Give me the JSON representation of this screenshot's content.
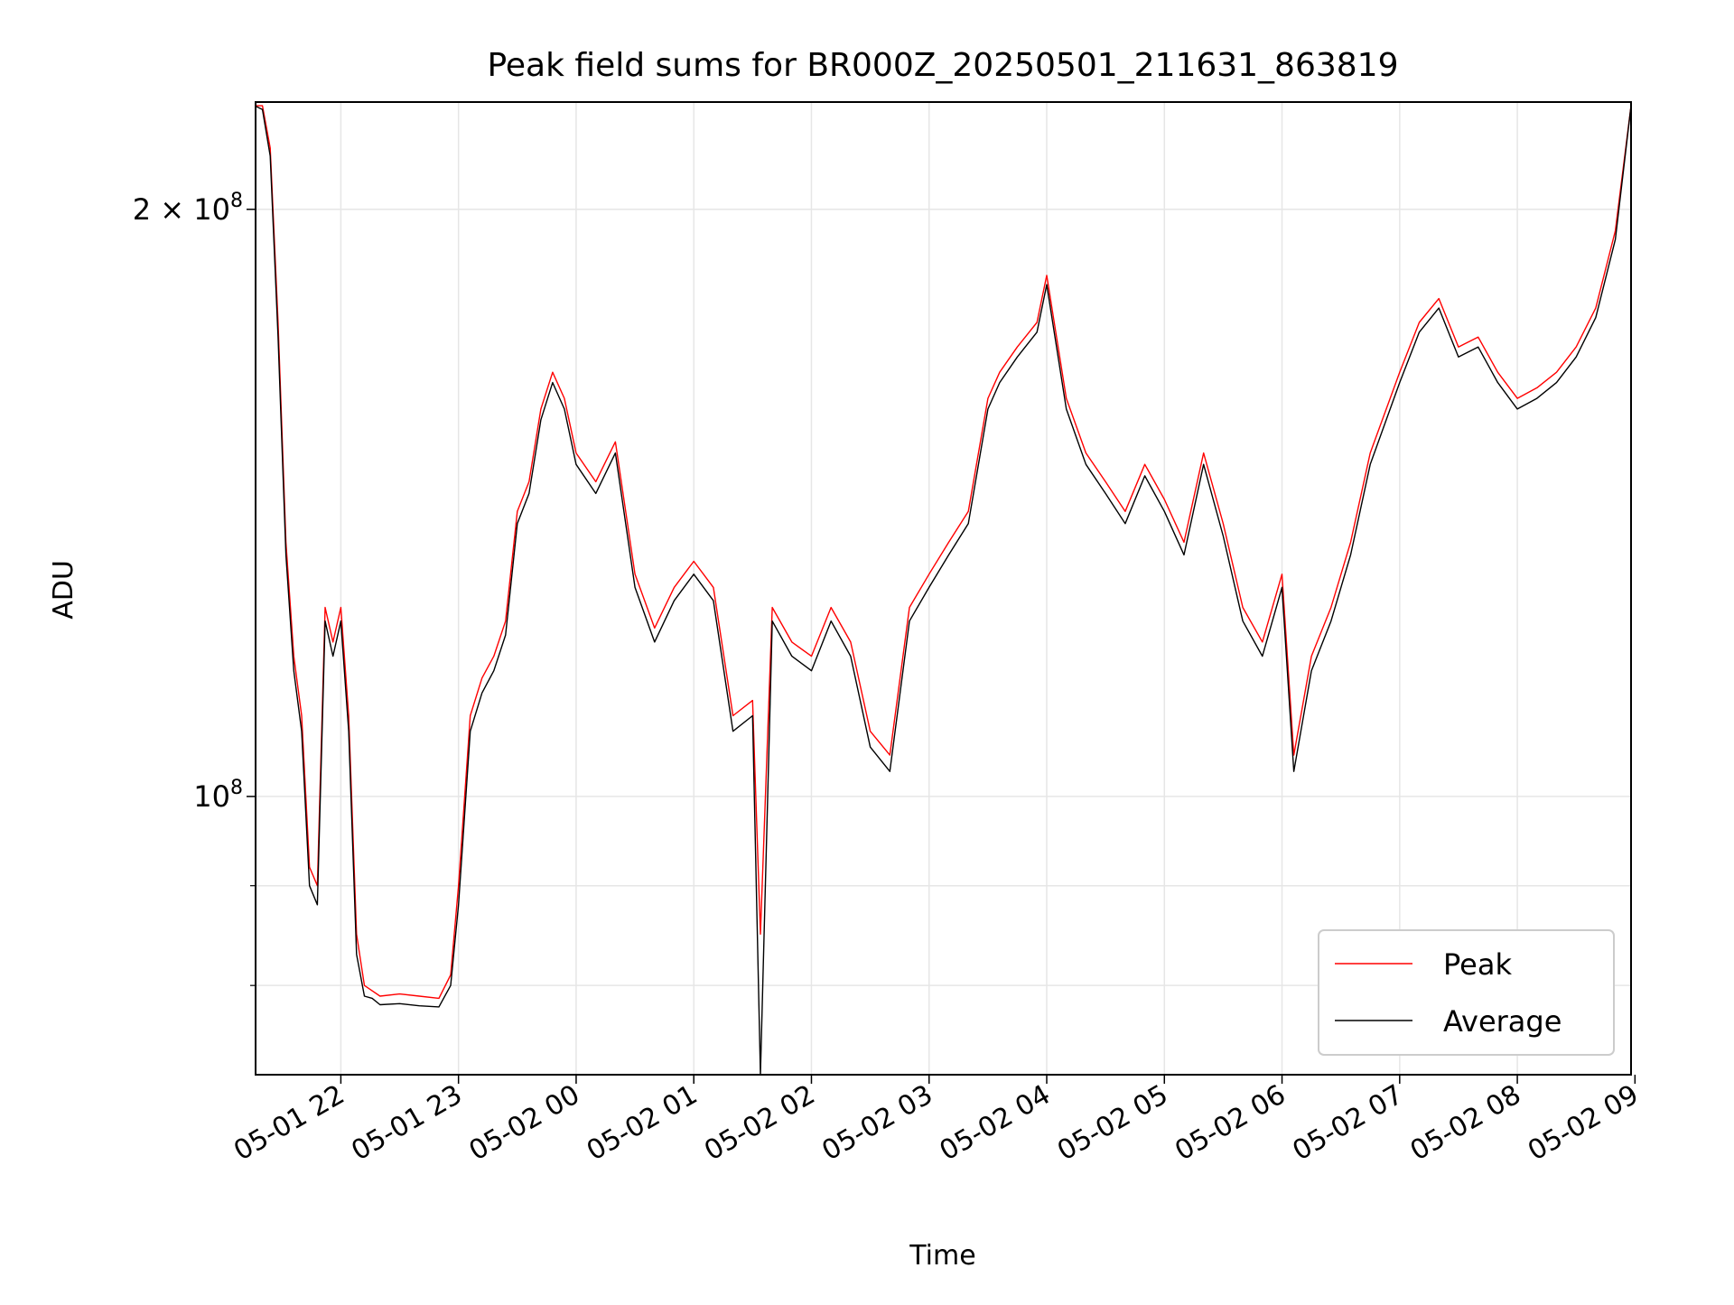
{
  "chart_data": {
    "type": "line",
    "title": "Peak field sums for BR000Z_20250501_211631_863819",
    "xlabel": "Time",
    "ylabel": "ADU",
    "yscale": "log",
    "xlim": [
      "2025-05-01 21:16:31",
      "2025-05-02 08:58:00"
    ],
    "ylim": [
      72000000,
      227000000
    ],
    "grid": true,
    "legend_position": "lower right",
    "x_ticks": [
      {
        "time": "2025-05-01 22:00",
        "label": "05-01 22"
      },
      {
        "time": "2025-05-01 23:00",
        "label": "05-01 23"
      },
      {
        "time": "2025-05-02 00:00",
        "label": "05-02 00"
      },
      {
        "time": "2025-05-02 01:00",
        "label": "05-02 01"
      },
      {
        "time": "2025-05-02 02:00",
        "label": "05-02 02"
      },
      {
        "time": "2025-05-02 03:00",
        "label": "05-02 03"
      },
      {
        "time": "2025-05-02 04:00",
        "label": "05-02 04"
      },
      {
        "time": "2025-05-02 05:00",
        "label": "05-02 05"
      },
      {
        "time": "2025-05-02 06:00",
        "label": "05-02 06"
      },
      {
        "time": "2025-05-02 07:00",
        "label": "05-02 07"
      },
      {
        "time": "2025-05-02 08:00",
        "label": "05-02 08"
      },
      {
        "time": "2025-05-02 09:00",
        "label": "05-02 09"
      }
    ],
    "y_ticks_major": [
      {
        "value": 100000000,
        "label_base": "10",
        "label_exp": "8",
        "label_prefix": ""
      },
      {
        "value": 200000000,
        "label_base": "10",
        "label_exp": "8",
        "label_prefix": "2 × "
      }
    ],
    "y_ticks_minor": [
      80000000,
      90000000
    ],
    "series": [
      {
        "name": "Peak",
        "color": "#ff0000",
        "x": [
          "2025-05-01 21:16",
          "2025-05-01 21:20",
          "2025-05-01 21:24",
          "2025-05-01 21:28",
          "2025-05-01 21:32",
          "2025-05-01 21:36",
          "2025-05-01 21:40",
          "2025-05-01 21:44",
          "2025-05-01 21:48",
          "2025-05-01 21:52",
          "2025-05-01 21:56",
          "2025-05-01 22:00",
          "2025-05-01 22:04",
          "2025-05-01 22:08",
          "2025-05-01 22:12",
          "2025-05-01 22:16",
          "2025-05-01 22:20",
          "2025-05-01 22:30",
          "2025-05-01 22:40",
          "2025-05-01 22:50",
          "2025-05-01 22:56",
          "2025-05-01 23:00",
          "2025-05-01 23:06",
          "2025-05-01 23:12",
          "2025-05-01 23:18",
          "2025-05-01 23:24",
          "2025-05-01 23:30",
          "2025-05-01 23:36",
          "2025-05-01 23:42",
          "2025-05-01 23:48",
          "2025-05-01 23:54",
          "2025-05-02 00:00",
          "2025-05-02 00:10",
          "2025-05-02 00:20",
          "2025-05-02 00:30",
          "2025-05-02 00:40",
          "2025-05-02 00:50",
          "2025-05-02 01:00",
          "2025-05-02 01:10",
          "2025-05-02 01:20",
          "2025-05-02 01:30",
          "2025-05-02 01:34",
          "2025-05-02 01:40",
          "2025-05-02 01:50",
          "2025-05-02 02:00",
          "2025-05-02 02:10",
          "2025-05-02 02:20",
          "2025-05-02 02:30",
          "2025-05-02 02:40",
          "2025-05-02 02:50",
          "2025-05-02 03:00",
          "2025-05-02 03:10",
          "2025-05-02 03:20",
          "2025-05-02 03:30",
          "2025-05-02 03:36",
          "2025-05-02 03:45",
          "2025-05-02 03:55",
          "2025-05-02 04:00",
          "2025-05-02 04:10",
          "2025-05-02 04:20",
          "2025-05-02 04:30",
          "2025-05-02 04:40",
          "2025-05-02 04:50",
          "2025-05-02 05:00",
          "2025-05-02 05:10",
          "2025-05-02 05:20",
          "2025-05-02 05:30",
          "2025-05-02 05:40",
          "2025-05-02 05:50",
          "2025-05-02 06:00",
          "2025-05-02 06:06",
          "2025-05-02 06:15",
          "2025-05-02 06:25",
          "2025-05-02 06:35",
          "2025-05-02 06:45",
          "2025-05-02 07:00",
          "2025-05-02 07:10",
          "2025-05-02 07:20",
          "2025-05-02 07:30",
          "2025-05-02 07:40",
          "2025-05-02 07:50",
          "2025-05-02 08:00",
          "2025-05-02 08:10",
          "2025-05-02 08:20",
          "2025-05-02 08:30",
          "2025-05-02 08:40",
          "2025-05-02 08:50",
          "2025-05-02 08:58"
        ],
        "values": [
          226000000,
          226000000,
          215000000,
          175000000,
          135000000,
          118000000,
          110000000,
          92000000,
          90000000,
          125000000,
          120000000,
          125000000,
          110000000,
          85000000,
          80000000,
          79500000,
          79000000,
          79200000,
          79000000,
          78800000,
          81000000,
          90000000,
          110000000,
          115000000,
          118000000,
          123000000,
          140000000,
          145000000,
          158000000,
          165000000,
          160000000,
          150000000,
          145000000,
          152000000,
          130000000,
          122000000,
          128000000,
          132000000,
          128000000,
          110000000,
          112000000,
          85000000,
          125000000,
          120000000,
          118000000,
          125000000,
          120000000,
          108000000,
          105000000,
          125000000,
          130000000,
          135000000,
          140000000,
          160000000,
          165000000,
          170000000,
          175000000,
          185000000,
          160000000,
          150000000,
          145000000,
          140000000,
          148000000,
          142000000,
          135000000,
          150000000,
          138000000,
          125000000,
          120000000,
          130000000,
          105000000,
          118000000,
          125000000,
          135000000,
          150000000,
          165000000,
          175000000,
          180000000,
          170000000,
          172000000,
          165000000,
          160000000,
          162000000,
          165000000,
          170000000,
          178000000,
          195000000,
          226000000
        ]
      },
      {
        "name": "Average",
        "color": "#000000",
        "x": [
          "2025-05-01 21:16",
          "2025-05-01 21:20",
          "2025-05-01 21:24",
          "2025-05-01 21:28",
          "2025-05-01 21:32",
          "2025-05-01 21:36",
          "2025-05-01 21:40",
          "2025-05-01 21:44",
          "2025-05-01 21:48",
          "2025-05-01 21:52",
          "2025-05-01 21:56",
          "2025-05-01 22:00",
          "2025-05-01 22:04",
          "2025-05-01 22:08",
          "2025-05-01 22:12",
          "2025-05-01 22:16",
          "2025-05-01 22:20",
          "2025-05-01 22:30",
          "2025-05-01 22:40",
          "2025-05-01 22:50",
          "2025-05-01 22:56",
          "2025-05-01 23:00",
          "2025-05-01 23:06",
          "2025-05-01 23:12",
          "2025-05-01 23:18",
          "2025-05-01 23:24",
          "2025-05-01 23:30",
          "2025-05-01 23:36",
          "2025-05-01 23:42",
          "2025-05-01 23:48",
          "2025-05-01 23:54",
          "2025-05-02 00:00",
          "2025-05-02 00:10",
          "2025-05-02 00:20",
          "2025-05-02 00:30",
          "2025-05-02 00:40",
          "2025-05-02 00:50",
          "2025-05-02 01:00",
          "2025-05-02 01:10",
          "2025-05-02 01:20",
          "2025-05-02 01:30",
          "2025-05-02 01:34",
          "2025-05-02 01:40",
          "2025-05-02 01:50",
          "2025-05-02 02:00",
          "2025-05-02 02:10",
          "2025-05-02 02:20",
          "2025-05-02 02:30",
          "2025-05-02 02:40",
          "2025-05-02 02:50",
          "2025-05-02 03:00",
          "2025-05-02 03:10",
          "2025-05-02 03:20",
          "2025-05-02 03:30",
          "2025-05-02 03:36",
          "2025-05-02 03:45",
          "2025-05-02 03:55",
          "2025-05-02 04:00",
          "2025-05-02 04:10",
          "2025-05-02 04:20",
          "2025-05-02 04:30",
          "2025-05-02 04:40",
          "2025-05-02 04:50",
          "2025-05-02 05:00",
          "2025-05-02 05:10",
          "2025-05-02 05:20",
          "2025-05-02 05:30",
          "2025-05-02 05:40",
          "2025-05-02 05:50",
          "2025-05-02 06:00",
          "2025-05-02 06:06",
          "2025-05-02 06:15",
          "2025-05-02 06:25",
          "2025-05-02 06:35",
          "2025-05-02 06:45",
          "2025-05-02 07:00",
          "2025-05-02 07:10",
          "2025-05-02 07:20",
          "2025-05-02 07:30",
          "2025-05-02 07:40",
          "2025-05-02 07:50",
          "2025-05-02 08:00",
          "2025-05-02 08:10",
          "2025-05-02 08:20",
          "2025-05-02 08:30",
          "2025-05-02 08:40",
          "2025-05-02 08:50",
          "2025-05-02 08:58"
        ],
        "values": [
          226000000,
          225000000,
          213000000,
          172000000,
          133000000,
          116000000,
          108000000,
          90000000,
          88000000,
          123000000,
          118000000,
          123000000,
          108000000,
          83000000,
          79000000,
          78800000,
          78200000,
          78300000,
          78100000,
          78000000,
          80000000,
          88000000,
          108000000,
          113000000,
          116000000,
          121000000,
          138000000,
          143000000,
          156000000,
          163000000,
          158000000,
          148000000,
          143000000,
          150000000,
          128000000,
          120000000,
          126000000,
          130000000,
          126000000,
          108000000,
          110000000,
          72000000,
          123000000,
          118000000,
          116000000,
          123000000,
          118000000,
          106000000,
          103000000,
          123000000,
          128000000,
          133000000,
          138000000,
          158000000,
          163000000,
          168000000,
          173000000,
          183000000,
          158000000,
          148000000,
          143000000,
          138000000,
          146000000,
          140000000,
          133000000,
          148000000,
          136000000,
          123000000,
          118000000,
          128000000,
          103000000,
          116000000,
          123000000,
          133000000,
          148000000,
          163000000,
          173000000,
          178000000,
          168000000,
          170000000,
          163000000,
          158000000,
          160000000,
          163000000,
          168000000,
          176000000,
          193000000,
          226000000
        ]
      }
    ]
  }
}
